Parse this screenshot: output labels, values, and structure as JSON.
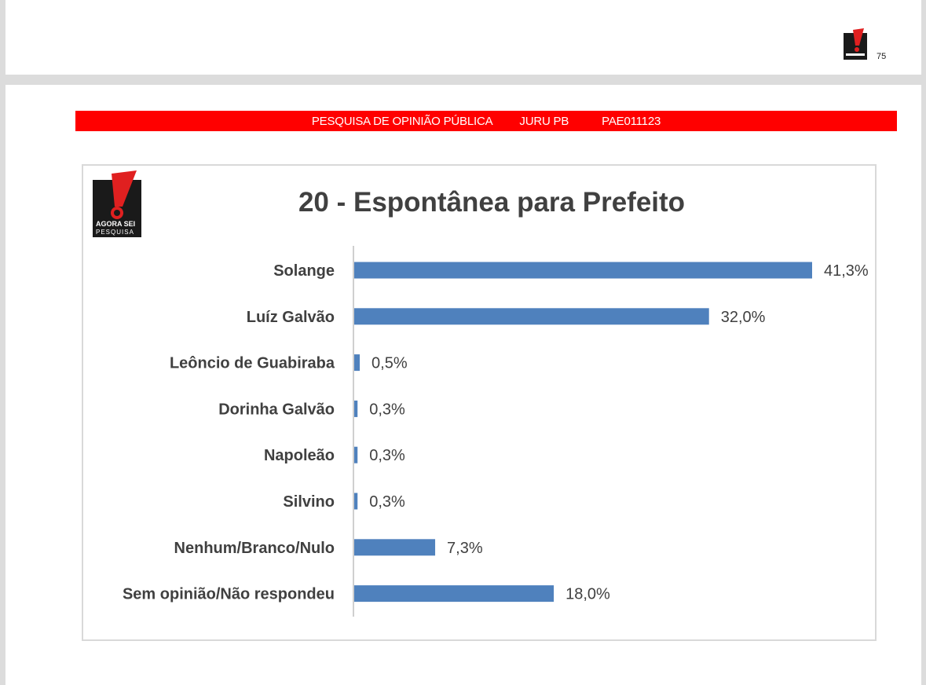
{
  "previous_page": {
    "page_number": "75",
    "logo_text": "AGORA SEI PESQUISA"
  },
  "banner": {
    "survey": "PESQUISA DE OPINIÃO PÚBLICA",
    "location": "JURU PB",
    "code": "PAE011123"
  },
  "logo": {
    "text_line1": "AGORA SEI",
    "text_line2": "PESQUISA",
    "colors": {
      "background": "#1a1a1a",
      "accent": "#e02020"
    }
  },
  "colors": {
    "bar": "#4f81bd",
    "banner": "#ff0000",
    "text": "#404040"
  },
  "chart_data": {
    "type": "bar",
    "orientation": "horizontal",
    "title": "20 - Espontânea para Prefeito",
    "categories": [
      "Solange",
      "Luíz Galvão",
      "Leôncio de Guabiraba",
      "Dorinha Galvão",
      "Napoleão",
      "Silvino",
      "Nenhum/Branco/Nulo",
      "Sem opinião/Não respondeu"
    ],
    "values": [
      41.3,
      32.0,
      0.5,
      0.3,
      0.3,
      0.3,
      7.3,
      18.0
    ],
    "value_labels": [
      "41,3%",
      "32,0%",
      "0,5%",
      "0,3%",
      "0,3%",
      "0,3%",
      "7,3%",
      "18,0%"
    ],
    "xlim": [
      0,
      41.3
    ],
    "grid": false,
    "legend": "none"
  }
}
